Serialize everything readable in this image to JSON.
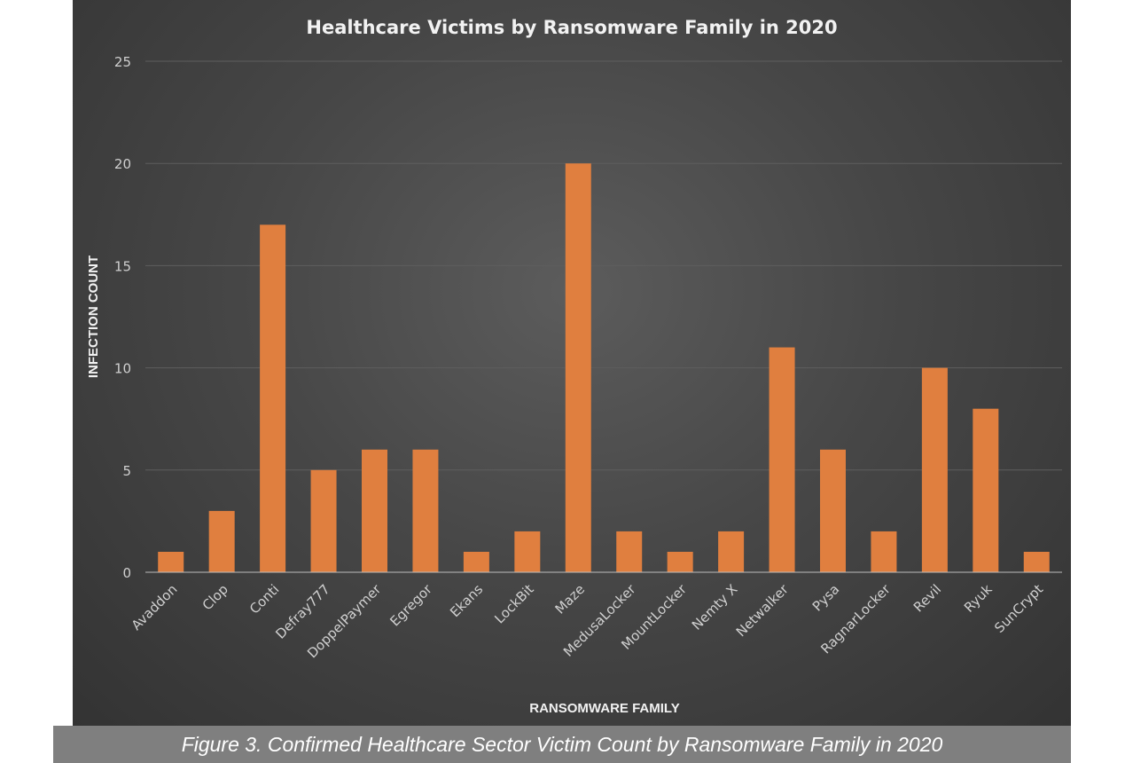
{
  "caption": "Figure 3. Confirmed Healthcare Sector Victim Count by Ransomware Family in 2020",
  "colors": {
    "bar": "#E07F3F"
  },
  "chart_data": {
    "type": "bar",
    "title": "Healthcare Victims by Ransomware Family in 2020",
    "xlabel": "RANSOMWARE FAMILY",
    "ylabel": "INFECTION COUNT",
    "ylim": [
      0,
      25
    ],
    "yticks": [
      0,
      5,
      10,
      15,
      20,
      25
    ],
    "grid": true,
    "categories": [
      "Avaddon",
      "Clop",
      "Conti",
      "Defray777",
      "DoppelPaymer",
      "Egregor",
      "Ekans",
      "LockBit",
      "Maze",
      "MedusaLocker",
      "MountLocker",
      "Nemty X",
      "Netwalker",
      "Pysa",
      "RagnarLocker",
      "Revil",
      "Ryuk",
      "SunCrypt"
    ],
    "values": [
      1,
      3,
      17,
      5,
      6,
      6,
      1,
      2,
      20,
      2,
      1,
      2,
      11,
      6,
      2,
      10,
      8,
      1
    ]
  }
}
